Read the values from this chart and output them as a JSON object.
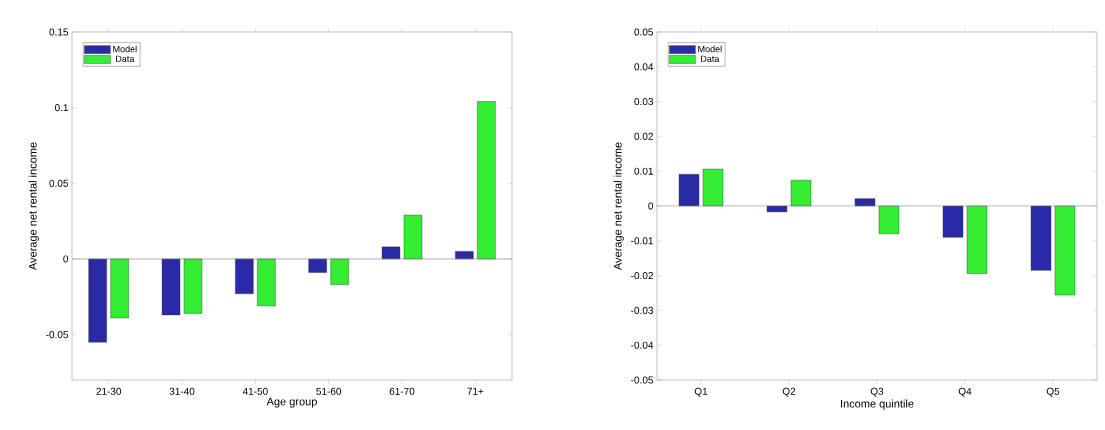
{
  "chart_data": [
    {
      "type": "bar",
      "xlabel": "Age group",
      "ylabel": "Average net rental income",
      "categories": [
        "21-30",
        "31-40",
        "41-50",
        "51-60",
        "61-70",
        "71+"
      ],
      "series": [
        {
          "name": "Model",
          "color": "#2a2aa6",
          "values": [
            -0.055,
            -0.037,
            -0.023,
            -0.009,
            0.008,
            0.005
          ]
        },
        {
          "name": "Data",
          "color": "#33ee33",
          "values": [
            -0.039,
            -0.036,
            -0.031,
            -0.017,
            0.029,
            0.104
          ]
        }
      ],
      "ylim": [
        -0.08,
        0.15
      ],
      "yticks": [
        -0.05,
        0,
        0.05,
        0.1,
        0.15
      ],
      "ref_lines": [
        {
          "axis": "y",
          "value": 0,
          "color": "#808080"
        }
      ],
      "legend": "top left",
      "grid": false
    },
    {
      "type": "bar",
      "xlabel": "Income quintile",
      "ylabel": "Average net rental income",
      "categories": [
        "Q1",
        "Q2",
        "Q3",
        "Q4",
        "Q5"
      ],
      "series": [
        {
          "name": "Model",
          "color": "#2a2aa6",
          "values": [
            0.0091,
            -0.0017,
            0.0021,
            -0.009,
            -0.0185
          ]
        },
        {
          "name": "Data",
          "color": "#33ee33",
          "values": [
            0.0106,
            0.0074,
            -0.008,
            -0.0194,
            -0.0256
          ]
        }
      ],
      "ylim": [
        -0.05,
        0.05
      ],
      "yticks": [
        -0.05,
        -0.04,
        -0.03,
        -0.02,
        -0.01,
        0,
        0.01,
        0.02,
        0.03,
        0.04,
        0.05
      ],
      "ref_lines": [
        {
          "axis": "y",
          "value": 0,
          "color": "#808080"
        }
      ],
      "legend": "top left",
      "grid": false
    }
  ]
}
